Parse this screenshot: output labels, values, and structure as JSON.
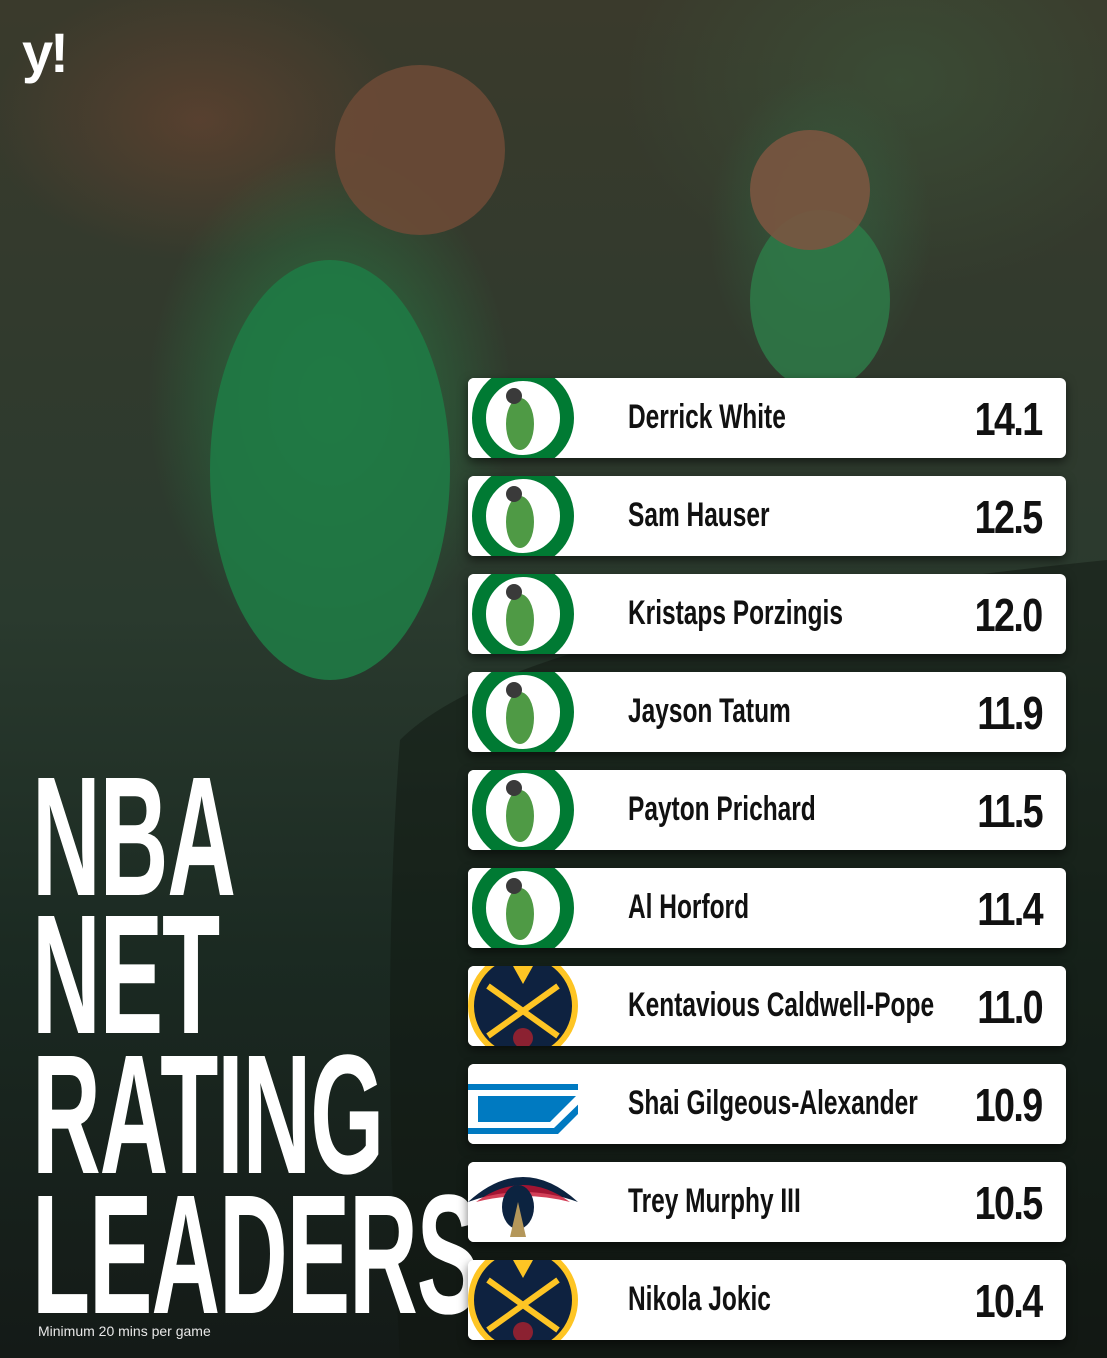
{
  "brand": "y!",
  "title": {
    "lines": [
      "NBA",
      "NET",
      "RATING",
      "LEADERS"
    ]
  },
  "note": "Minimum 20 mins per game",
  "rows": [
    {
      "name": "Derrick White",
      "value": "14.1"
    },
    {
      "name": "Sam Hauser",
      "value": "12.5"
    },
    {
      "name": "Kristaps Porzingis",
      "value": "12.0"
    },
    {
      "name": "Jayson Tatum",
      "value": "11.9"
    },
    {
      "name": "Payton Prichard",
      "value": "11.5"
    },
    {
      "name": "Al Horford",
      "value": "11.4"
    },
    {
      "name": "Kentavious Caldwell-Pope",
      "value": "11.0"
    },
    {
      "name": "Shai Gilgeous-Alexander",
      "value": "10.9"
    },
    {
      "name": "Trey Murphy III",
      "value": "10.5"
    },
    {
      "name": "Nikola Jokic",
      "value": "10.4"
    }
  ]
}
